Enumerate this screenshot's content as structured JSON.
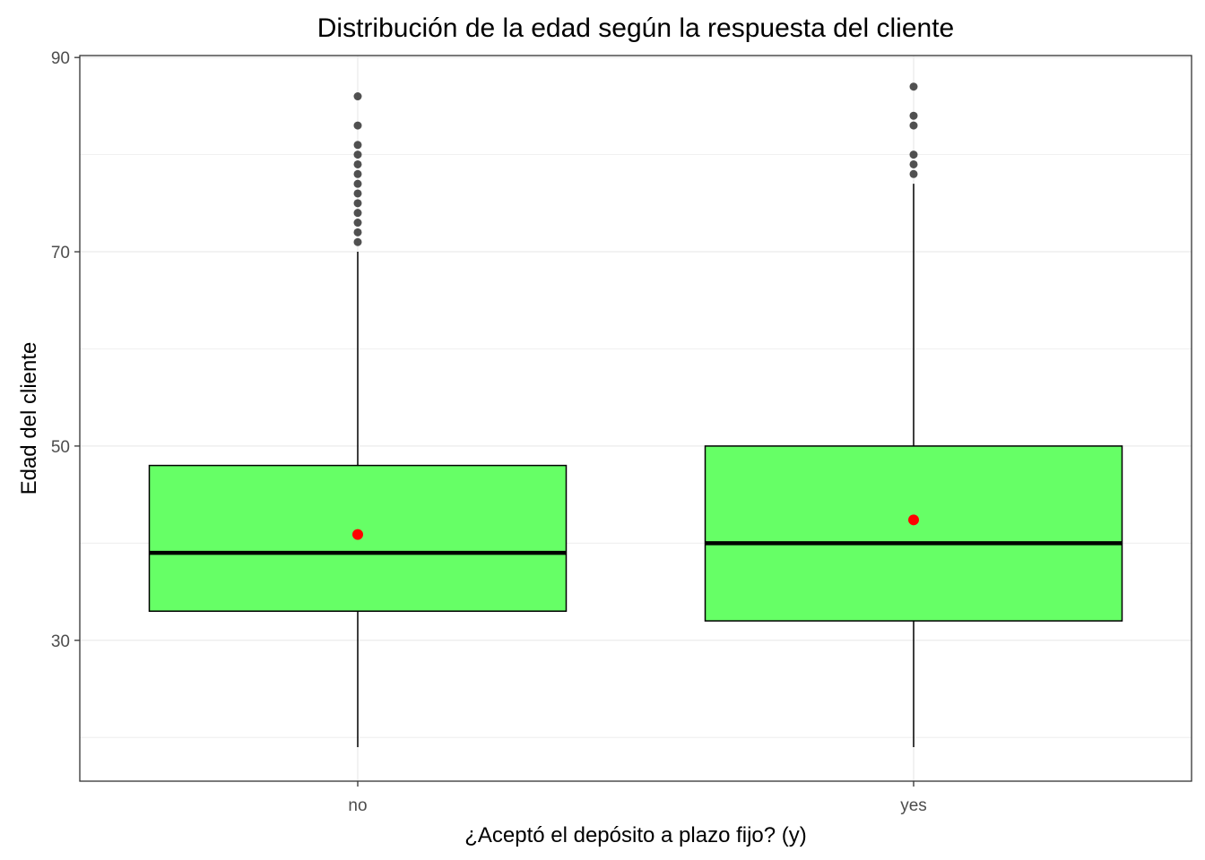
{
  "chart_data": {
    "type": "boxplot",
    "title": "Distribución de la edad según la respuesta del cliente",
    "xlabel": "¿Aceptó el depósito a plazo fijo? (y)",
    "ylabel": "Edad del cliente",
    "categories": [
      "no",
      "yes"
    ],
    "ylim": [
      15.5,
      90.2
    ],
    "yticks": [
      30,
      50,
      70,
      90
    ],
    "grid": true,
    "colors": {
      "box_fill": "#66ff66",
      "box_stroke": "#000000",
      "median": "#000000",
      "mean_point": "#ff0000",
      "outlier": "#333333",
      "grid": "#ebebeb"
    },
    "boxes": [
      {
        "category": "no",
        "whisker_low": 19,
        "q1": 33,
        "median": 39,
        "q3": 48,
        "whisker_high": 70,
        "mean": 40.9,
        "outliers": [
          71,
          72,
          73,
          74,
          75,
          76,
          77,
          78,
          79,
          80,
          81,
          83,
          86
        ]
      },
      {
        "category": "yes",
        "whisker_low": 19,
        "q1": 32,
        "median": 40,
        "q3": 50,
        "whisker_high": 77,
        "mean": 42.4,
        "outliers": [
          78,
          79,
          80,
          83,
          84,
          87
        ]
      }
    ]
  }
}
